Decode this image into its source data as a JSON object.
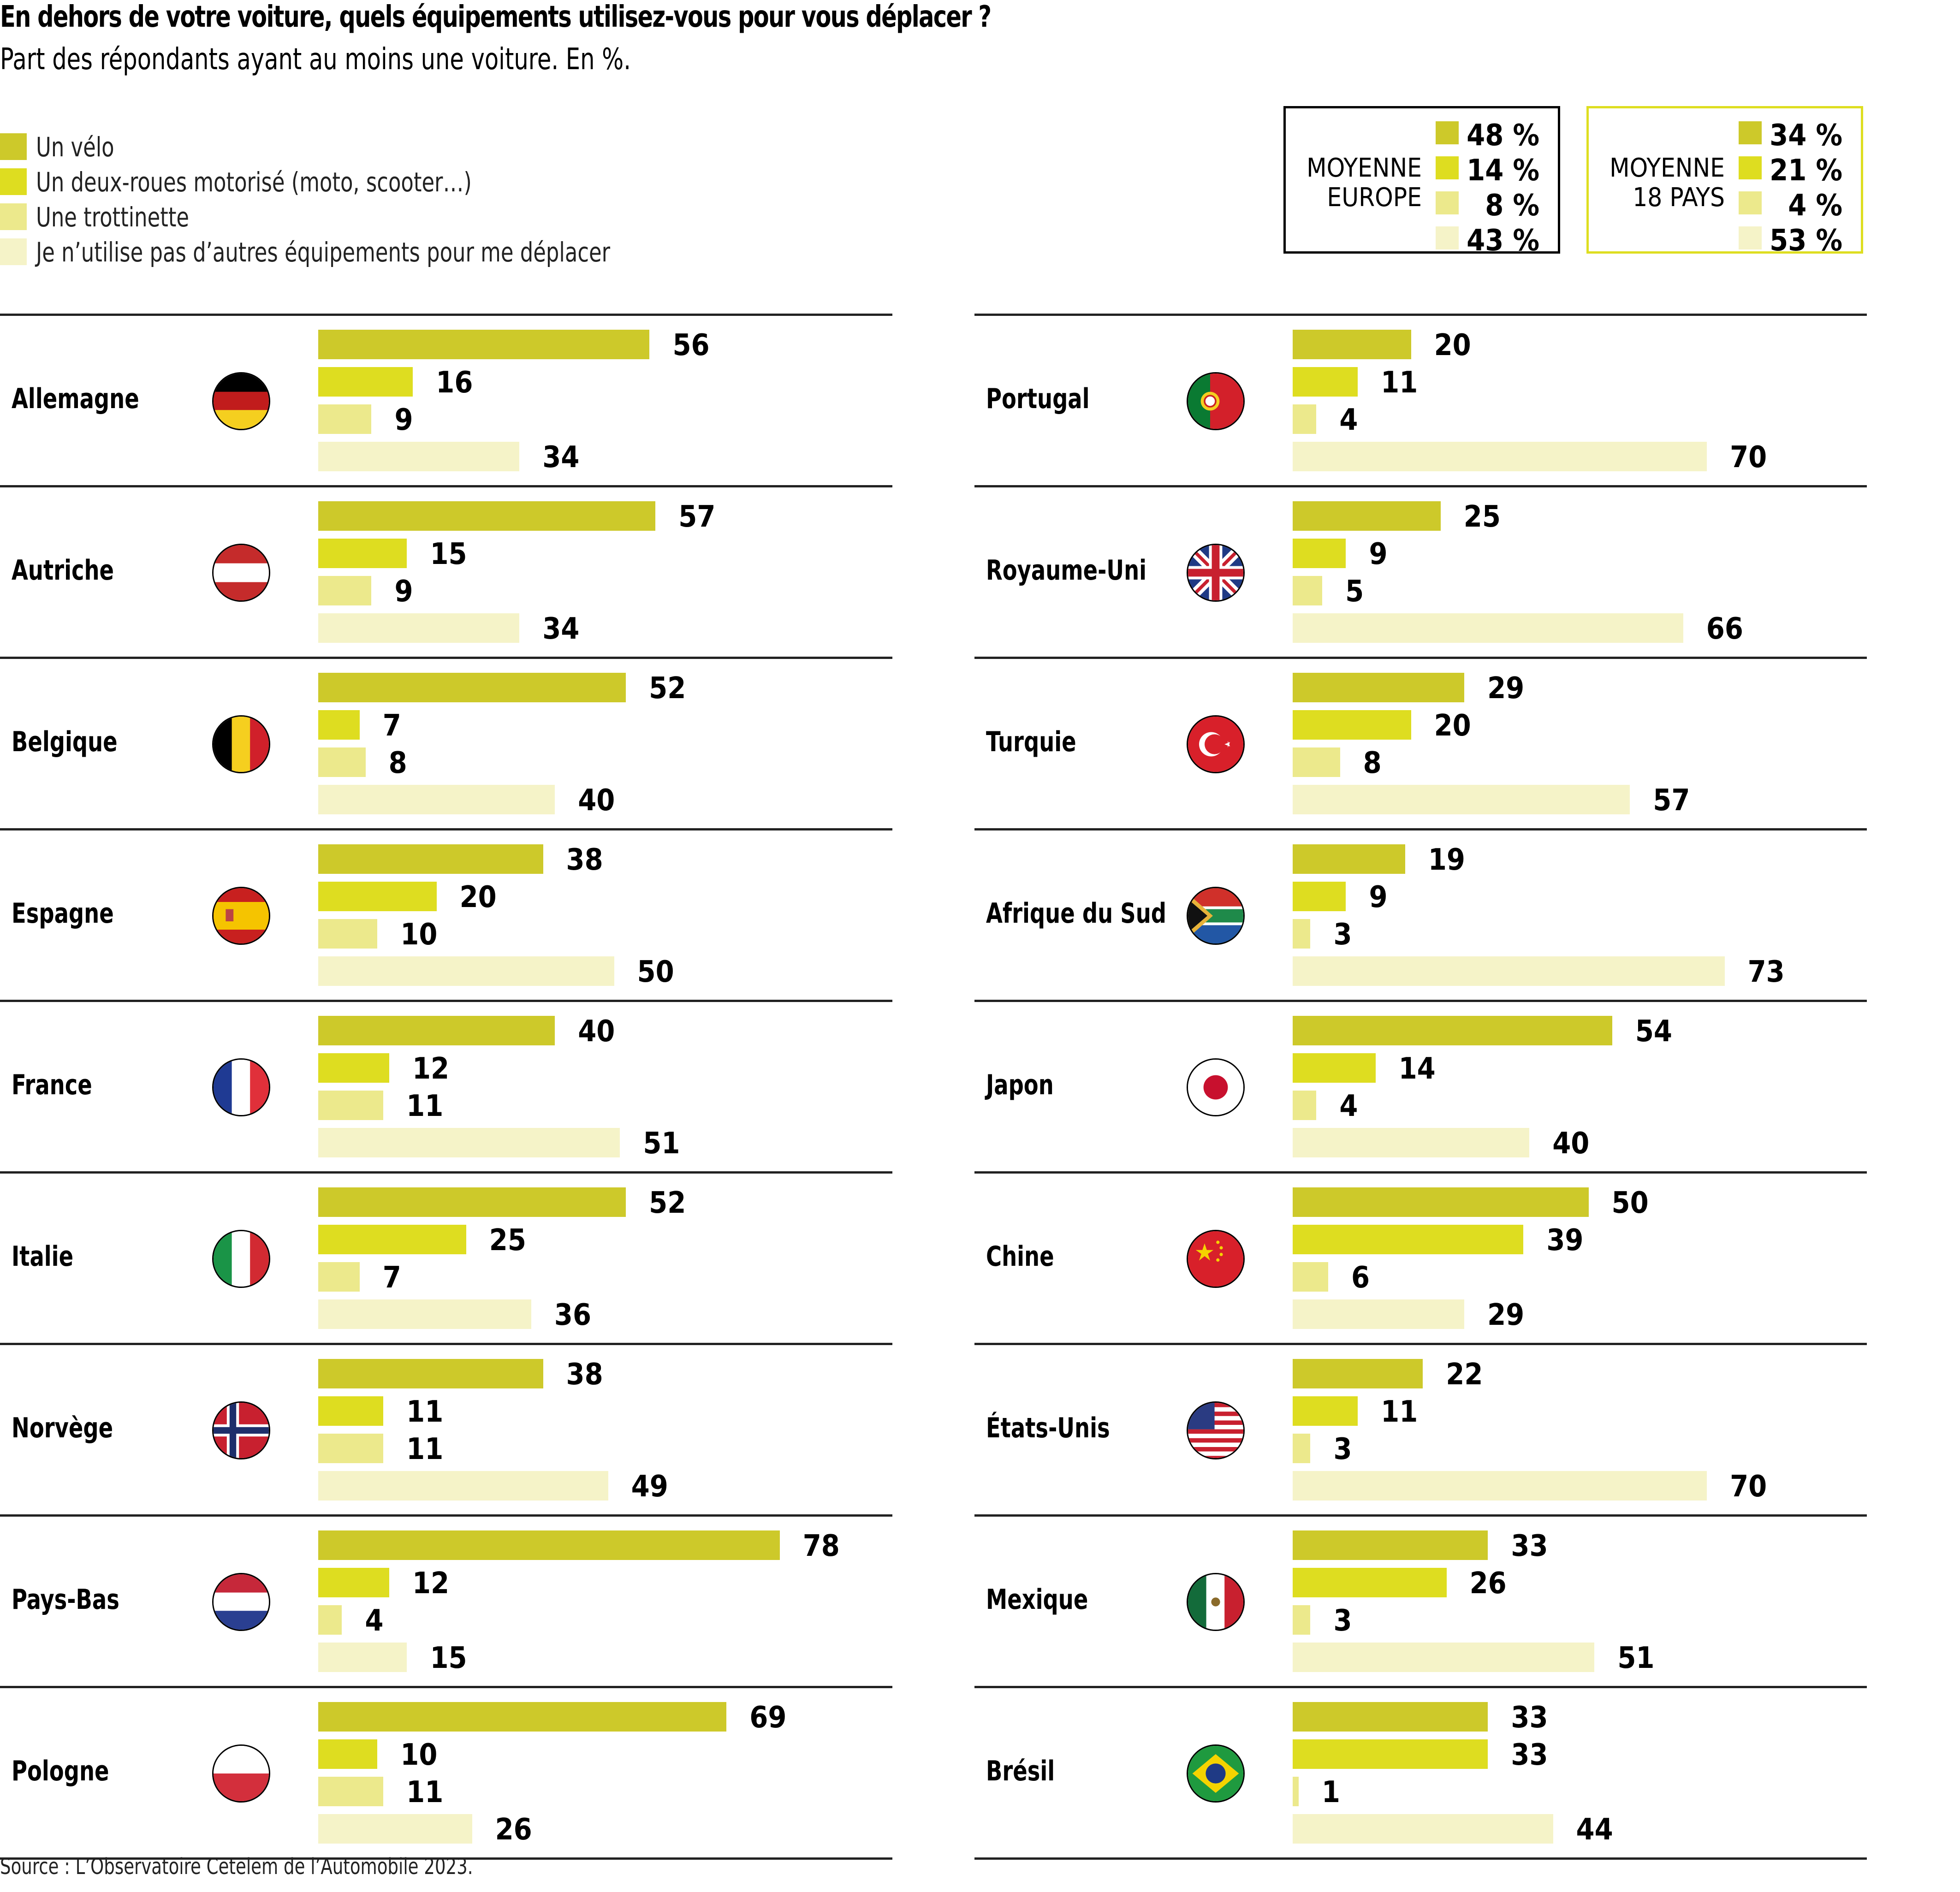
{
  "title": "En dehors de votre voiture, quels équipements utilisez-vous pour vous déplacer ?",
  "subtitle": "Part des répondants ayant au moins une voiture. En %.",
  "source": "Source : L’Observatoire Cetelem de l’Automobile 2023.",
  "colors": {
    "velo": "#cdc92a",
    "deux_roues": "#dedd20",
    "trottinette": "#ece98c",
    "aucun": "#f5f3c8"
  },
  "legend": [
    {
      "key": "velo",
      "label": "Un vélo"
    },
    {
      "key": "deux_roues",
      "label": "Un deux-roues motorisé (moto, scooter…)"
    },
    {
      "key": "trottinette",
      "label": "Une trottinette"
    },
    {
      "key": "aucun",
      "label": "Je n’utilise pas d’autres équipements pour me déplacer"
    }
  ],
  "averages": [
    {
      "title_line1": "MOYENNE",
      "title_line2": "EUROPE",
      "values": [
        "48 %",
        "14 %",
        "8 %",
        "43 %"
      ]
    },
    {
      "title_line1": "MOYENNE",
      "title_line2": "18 PAYS",
      "values": [
        "34 %",
        "21 %",
        "4 %",
        "53 %"
      ]
    }
  ],
  "chart_data": {
    "type": "bar",
    "orientation": "horizontal",
    "title": "En dehors de votre voiture, quels équipements utilisez-vous pour vous déplacer ?",
    "subtitle": "Part des répondants ayant au moins une voiture. En %.",
    "unit": "%",
    "series_names": [
      "Un vélo",
      "Un deux-roues motorisé (moto, scooter…)",
      "Une trottinette",
      "Je n’utilise pas d’autres équipements pour me déplacer"
    ],
    "averages": {
      "Moyenne Europe": [
        48,
        14,
        8,
        43
      ],
      "Moyenne 18 pays": [
        34,
        21,
        4,
        53
      ]
    },
    "columns": [
      [
        {
          "country": "Allemagne",
          "flag": "germany-flag",
          "values": [
            56,
            16,
            9,
            34
          ]
        },
        {
          "country": "Autriche",
          "flag": "austria-flag",
          "values": [
            57,
            15,
            9,
            34
          ]
        },
        {
          "country": "Belgique",
          "flag": "belgium-flag",
          "values": [
            52,
            7,
            8,
            40
          ]
        },
        {
          "country": "Espagne",
          "flag": "spain-flag",
          "values": [
            38,
            20,
            10,
            50
          ]
        },
        {
          "country": "France",
          "flag": "france-flag",
          "values": [
            40,
            12,
            11,
            51
          ]
        },
        {
          "country": "Italie",
          "flag": "italy-flag",
          "values": [
            52,
            25,
            7,
            36
          ]
        },
        {
          "country": "Norvège",
          "flag": "norway-flag",
          "values": [
            38,
            11,
            11,
            49
          ]
        },
        {
          "country": "Pays-Bas",
          "flag": "netherlands-flag",
          "values": [
            78,
            12,
            4,
            15
          ]
        },
        {
          "country": "Pologne",
          "flag": "poland-flag",
          "values": [
            69,
            10,
            11,
            26
          ]
        }
      ],
      [
        {
          "country": "Portugal",
          "flag": "portugal-flag",
          "values": [
            20,
            11,
            4,
            70
          ]
        },
        {
          "country": "Royaume-Uni",
          "flag": "uk-flag",
          "values": [
            25,
            9,
            5,
            66
          ]
        },
        {
          "country": "Turquie",
          "flag": "turkey-flag",
          "values": [
            29,
            20,
            8,
            57
          ]
        },
        {
          "country": "Afrique du Sud",
          "flag": "south-africa-flag",
          "values": [
            19,
            9,
            3,
            73
          ]
        },
        {
          "country": "Japon",
          "flag": "japan-flag",
          "values": [
            54,
            14,
            4,
            40
          ]
        },
        {
          "country": "Chine",
          "flag": "china-flag",
          "values": [
            50,
            39,
            6,
            29
          ]
        },
        {
          "country": "États-Unis",
          "flag": "usa-flag",
          "values": [
            22,
            11,
            3,
            70
          ]
        },
        {
          "country": "Mexique",
          "flag": "mexico-flag",
          "values": [
            33,
            26,
            3,
            51
          ]
        },
        {
          "country": "Brésil",
          "flag": "brazil-flag",
          "values": [
            33,
            33,
            1,
            44
          ]
        }
      ]
    ]
  }
}
